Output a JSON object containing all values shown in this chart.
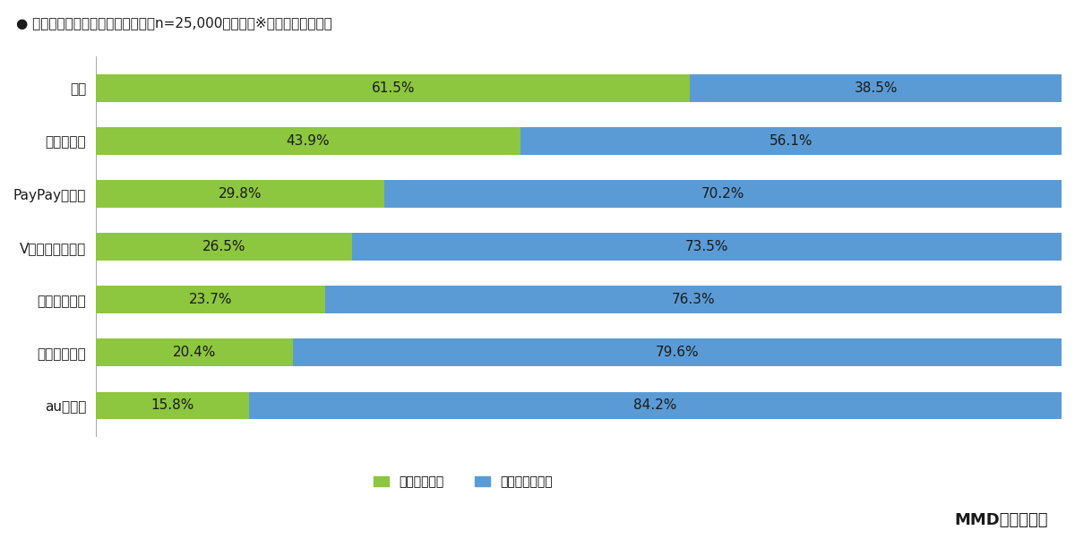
{
  "title": "● ポイント経済圏に対する意識（各n=25,000、単数）※ポイント経済圏別",
  "categories": [
    "全体",
    "楽天経済圏",
    "PayPay経済圏",
    "Vポイント経済圏",
    "ドコモ経済圏",
    "イオン経済圏",
    "au経済圏"
  ],
  "aware": [
    61.5,
    43.9,
    29.8,
    26.5,
    23.7,
    20.4,
    15.8
  ],
  "not_aware": [
    38.5,
    56.1,
    70.2,
    73.5,
    76.3,
    79.6,
    84.2
  ],
  "color_aware": "#8DC63F",
  "color_not_aware": "#5B9BD5",
  "legend_aware": "意識している",
  "legend_not_aware": "意識していない",
  "source": "MMD研究所調べ",
  "bar_height": 0.52,
  "figsize": [
    12.0,
    6.02
  ],
  "dpi": 100,
  "background_color": "#FFFFFF",
  "text_color": "#1a1a1a",
  "title_fontsize": 11,
  "label_fontsize": 11,
  "bar_label_fontsize": 11,
  "legend_fontsize": 10,
  "source_fontsize": 13
}
